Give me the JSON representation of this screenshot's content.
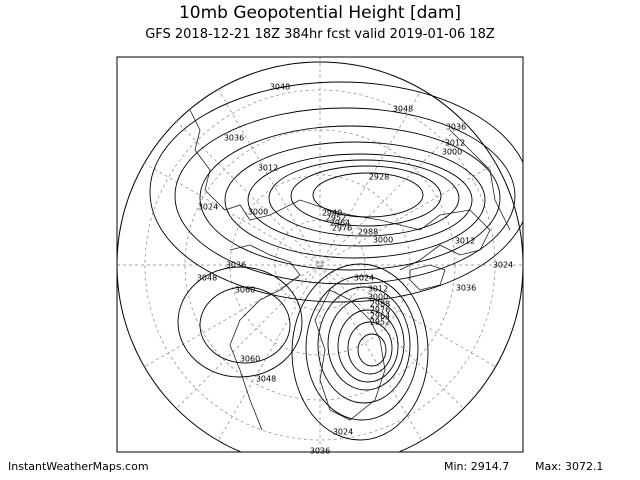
{
  "header": {
    "title": "10mb Geopotential Height [dam]",
    "subtitle": "GFS 2018-12-21 18Z 384hr fcst valid 2019-01-06 18Z"
  },
  "map": {
    "contour_labels": [
      "3048",
      "3048",
      "3036",
      "3036",
      "3012",
      "3012",
      "3000",
      "2928",
      "3024",
      "3000",
      "2940",
      "2952",
      "2964",
      "2976",
      "2988",
      "3000",
      "3012",
      "3024",
      "3036",
      "3036",
      "3048",
      "3060",
      "3024",
      "3012",
      "3000",
      "2988",
      "2976",
      "2964",
      "2952",
      "3060",
      "3048",
      "3024",
      "3036"
    ]
  },
  "footer": {
    "source": "InstantWeatherMaps.com",
    "min": "Min: 2914.7",
    "max": "Max: 3072.1"
  }
}
